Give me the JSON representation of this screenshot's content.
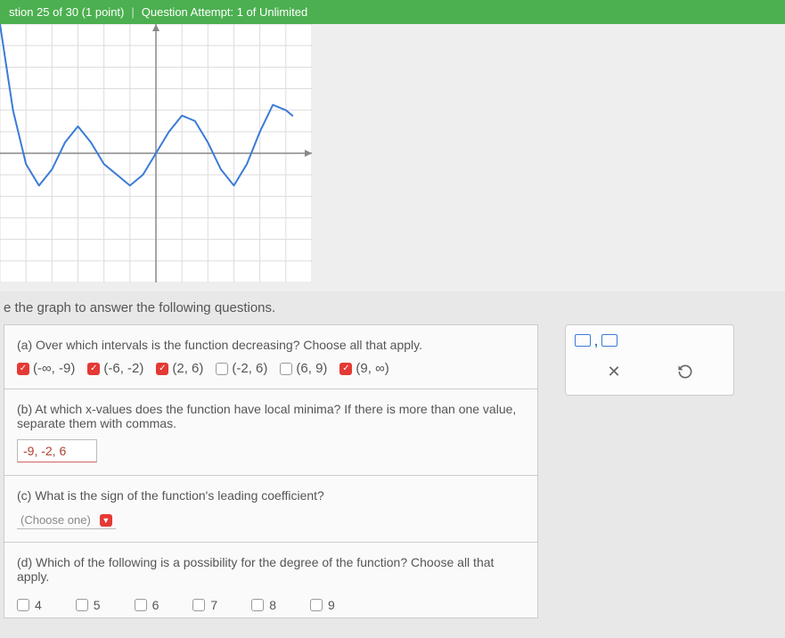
{
  "header": {
    "progress": "stion 25 of 30 (1 point)",
    "attempt": "Question Attempt: 1 of Unlimited"
  },
  "graph": {
    "type": "line",
    "background": "#ffffff",
    "grid_color": "#dcdcdc",
    "axis_color": "#888888",
    "curve_color": "#3b7bd6",
    "curve_width": 2,
    "xlim": [
      -12,
      12
    ],
    "ylim": [
      -12,
      12
    ],
    "xtick_step": 2,
    "ytick_step": 2,
    "points": [
      [
        -12,
        12
      ],
      [
        -11,
        4
      ],
      [
        -10,
        -1
      ],
      [
        -9,
        -3
      ],
      [
        -8,
        -1.5
      ],
      [
        -7,
        1
      ],
      [
        -6,
        2.5
      ],
      [
        -5,
        1
      ],
      [
        -4,
        -1
      ],
      [
        -3,
        -2
      ],
      [
        -2,
        -3
      ],
      [
        -1,
        -2
      ],
      [
        0,
        0
      ],
      [
        1,
        2
      ],
      [
        2,
        3.5
      ],
      [
        3,
        3
      ],
      [
        4,
        1
      ],
      [
        5,
        -1.5
      ],
      [
        6,
        -3
      ],
      [
        7,
        -1
      ],
      [
        8,
        2
      ],
      [
        9,
        4.5
      ],
      [
        10,
        4
      ],
      [
        10.5,
        3.5
      ]
    ]
  },
  "instruction": "e the graph to answer the following questions.",
  "qa": {
    "prompt": "(a) Over which intervals is the function decreasing? Choose all that apply.",
    "options": [
      {
        "label": "(-∞, -9)",
        "checked": true
      },
      {
        "label": "(-6, -2)",
        "checked": true
      },
      {
        "label": "(2, 6)",
        "checked": true
      },
      {
        "label": "(-2, 6)",
        "checked": false
      },
      {
        "label": "(6, 9)",
        "checked": false
      },
      {
        "label": "(9, ∞)",
        "checked": true
      }
    ]
  },
  "qb": {
    "prompt": "(b) At which x-values does the function have local minima? If there is more than one value, separate them with commas.",
    "value": "-9, -2, 6"
  },
  "qc": {
    "prompt": "(c) What is the sign of the function's leading coefficient?",
    "placeholder": "(Choose one)"
  },
  "qd": {
    "prompt": "(d) Which of the following is a possibility for the degree of the function? Choose all that apply.",
    "options": [
      {
        "label": "4",
        "checked": false
      },
      {
        "label": "5",
        "checked": false
      },
      {
        "label": "6",
        "checked": false
      },
      {
        "label": "7",
        "checked": false
      },
      {
        "label": "8",
        "checked": false
      },
      {
        "label": "9",
        "checked": false
      }
    ]
  },
  "toolbox": {
    "close": "✕",
    "undo": "↺"
  }
}
